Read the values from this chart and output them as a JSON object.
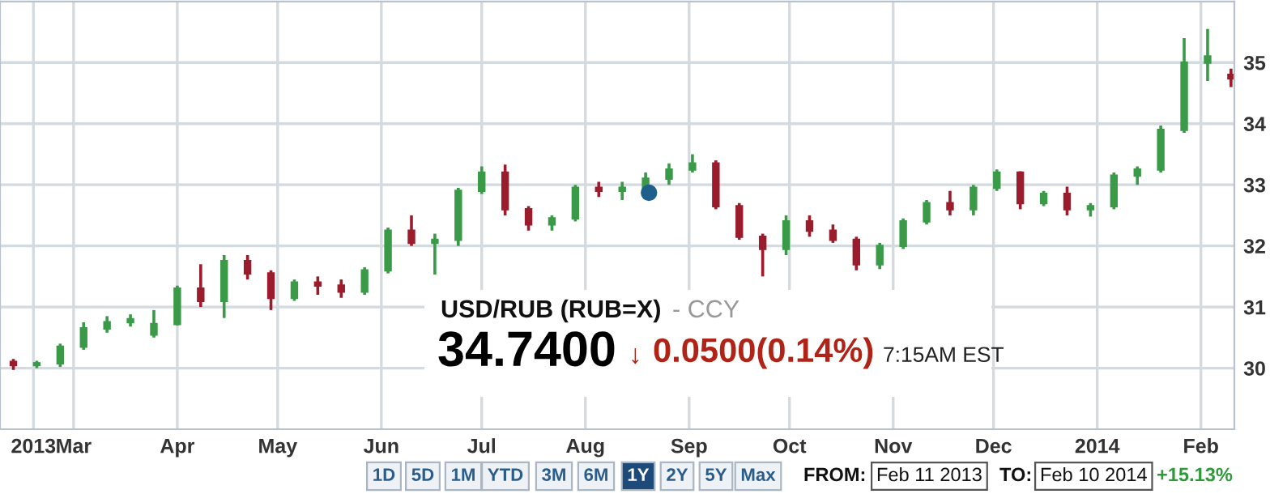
{
  "chart_data": {
    "type": "candlestick",
    "x": [
      "2013-02-11",
      "2013-02-18",
      "2013-02-25",
      "2013-03-04",
      "2013-03-11",
      "2013-03-18",
      "2013-03-25",
      "2013-04-01",
      "2013-04-08",
      "2013-04-15",
      "2013-04-22",
      "2013-04-29",
      "2013-05-06",
      "2013-05-13",
      "2013-05-20",
      "2013-05-27",
      "2013-06-03",
      "2013-06-10",
      "2013-06-17",
      "2013-06-24",
      "2013-07-01",
      "2013-07-08",
      "2013-07-15",
      "2013-07-22",
      "2013-07-29",
      "2013-08-05",
      "2013-08-12",
      "2013-08-19",
      "2013-08-26",
      "2013-09-02",
      "2013-09-09",
      "2013-09-16",
      "2013-09-23",
      "2013-09-30",
      "2013-10-07",
      "2013-10-14",
      "2013-10-21",
      "2013-10-28",
      "2013-11-04",
      "2013-11-11",
      "2013-11-18",
      "2013-11-25",
      "2013-12-02",
      "2013-12-09",
      "2013-12-16",
      "2013-12-23",
      "2013-12-30",
      "2014-01-06",
      "2014-01-13",
      "2014-01-20",
      "2014-01-27",
      "2014-02-03",
      "2014-02-10"
    ],
    "ohlc": [
      [
        30.1,
        30.15,
        29.97,
        30.05
      ],
      [
        30.05,
        30.12,
        30.0,
        30.08
      ],
      [
        30.08,
        30.4,
        30.02,
        30.35
      ],
      [
        30.35,
        30.75,
        30.3,
        30.65
      ],
      [
        30.65,
        30.85,
        30.58,
        30.75
      ],
      [
        30.75,
        30.88,
        30.68,
        30.8
      ],
      [
        30.55,
        30.95,
        30.5,
        30.72
      ],
      [
        30.72,
        31.35,
        30.7,
        31.3
      ],
      [
        31.3,
        31.7,
        31.0,
        31.1
      ],
      [
        31.1,
        31.85,
        30.82,
        31.75
      ],
      [
        31.75,
        31.85,
        31.45,
        31.55
      ],
      [
        31.55,
        31.6,
        30.95,
        31.15
      ],
      [
        31.15,
        31.45,
        31.1,
        31.4
      ],
      [
        31.4,
        31.5,
        31.2,
        31.35
      ],
      [
        31.35,
        31.45,
        31.15,
        31.25
      ],
      [
        31.25,
        31.65,
        31.2,
        31.6
      ],
      [
        31.6,
        32.3,
        31.55,
        32.25
      ],
      [
        32.25,
        32.5,
        32.0,
        32.05
      ],
      [
        32.05,
        32.2,
        31.53,
        32.1
      ],
      [
        32.1,
        32.95,
        32.0,
        32.9
      ],
      [
        32.9,
        33.3,
        32.85,
        33.2
      ],
      [
        33.2,
        33.33,
        32.5,
        32.6
      ],
      [
        32.6,
        32.65,
        32.25,
        32.35
      ],
      [
        32.35,
        32.5,
        32.25,
        32.45
      ],
      [
        32.45,
        33.0,
        32.4,
        32.95
      ],
      [
        32.95,
        33.05,
        32.8,
        32.9
      ],
      [
        32.9,
        33.05,
        32.75,
        32.95
      ],
      [
        32.95,
        33.2,
        32.9,
        33.1
      ],
      [
        33.1,
        33.35,
        33.0,
        33.25
      ],
      [
        33.25,
        33.5,
        33.2,
        33.35
      ],
      [
        33.35,
        33.4,
        32.6,
        32.65
      ],
      [
        32.65,
        32.7,
        32.1,
        32.15
      ],
      [
        32.15,
        32.2,
        31.5,
        31.95
      ],
      [
        31.95,
        32.5,
        31.85,
        32.4
      ],
      [
        32.4,
        32.5,
        32.15,
        32.25
      ],
      [
        32.25,
        32.35,
        32.05,
        32.1
      ],
      [
        32.1,
        32.15,
        31.6,
        31.7
      ],
      [
        31.7,
        32.05,
        31.62,
        32.0
      ],
      [
        32.0,
        32.45,
        31.95,
        32.4
      ],
      [
        32.4,
        32.75,
        32.35,
        32.7
      ],
      [
        32.7,
        32.9,
        32.5,
        32.6
      ],
      [
        32.6,
        33.0,
        32.5,
        32.95
      ],
      [
        32.95,
        33.25,
        32.9,
        33.2
      ],
      [
        33.2,
        33.22,
        32.6,
        32.7
      ],
      [
        32.7,
        32.9,
        32.65,
        32.85
      ],
      [
        32.85,
        32.97,
        32.5,
        32.6
      ],
      [
        32.6,
        32.7,
        32.48,
        32.65
      ],
      [
        32.65,
        33.2,
        32.6,
        33.15
      ],
      [
        33.15,
        33.3,
        33.0,
        33.25
      ],
      [
        33.25,
        33.97,
        33.2,
        33.9
      ],
      [
        33.9,
        35.4,
        33.85,
        35.0
      ],
      [
        35.0,
        35.55,
        34.7,
        35.1
      ],
      [
        34.8,
        34.9,
        34.6,
        34.74
      ]
    ],
    "colors": [
      "#9b1c2c",
      "#3a9a48",
      "#3a9a48",
      "#3a9a48",
      "#3a9a48",
      "#3a9a48",
      "#3a9a48",
      "#3a9a48",
      "#9b1c2c",
      "#3a9a48",
      "#9b1c2c",
      "#9b1c2c",
      "#3a9a48",
      "#9b1c2c",
      "#9b1c2c",
      "#3a9a48",
      "#3a9a48",
      "#9b1c2c",
      "#3a9a48",
      "#3a9a48",
      "#3a9a48",
      "#9b1c2c",
      "#9b1c2c",
      "#3a9a48",
      "#3a9a48",
      "#9b1c2c",
      "#3a9a48",
      "#3a9a48",
      "#3a9a48",
      "#3a9a48",
      "#9b1c2c",
      "#9b1c2c",
      "#9b1c2c",
      "#3a9a48",
      "#9b1c2c",
      "#9b1c2c",
      "#9b1c2c",
      "#3a9a48",
      "#3a9a48",
      "#3a9a48",
      "#9b1c2c",
      "#3a9a48",
      "#3a9a48",
      "#9b1c2c",
      "#3a9a48",
      "#9b1c2c",
      "#3a9a48",
      "#3a9a48",
      "#3a9a48",
      "#3a9a48",
      "#3a9a48",
      "#3a9a48",
      "#9b1c2c"
    ],
    "series": [
      {
        "type": "scatter",
        "x": [
          "2013-08-20"
        ],
        "values": [
          32.87
        ],
        "color": "#1f5f8b",
        "marker": "circle"
      }
    ],
    "xlim": [
      "2013-02-07",
      "2014-02-11"
    ],
    "xticks": [
      {
        "value": "2013-02-17",
        "label": "2013"
      },
      {
        "value": "2013-03-01",
        "label": "Mar"
      },
      {
        "value": "2013-04-01",
        "label": "Apr"
      },
      {
        "value": "2013-05-01",
        "label": "May"
      },
      {
        "value": "2013-06-01",
        "label": "Jun"
      },
      {
        "value": "2013-07-01",
        "label": "Jul"
      },
      {
        "value": "2013-08-01",
        "label": "Aug"
      },
      {
        "value": "2013-09-01",
        "label": "Sep"
      },
      {
        "value": "2013-10-01",
        "label": "Oct"
      },
      {
        "value": "2013-11-01",
        "label": "Nov"
      },
      {
        "value": "2013-12-01",
        "label": "Dec"
      },
      {
        "value": "2014-01-01",
        "label": "2014"
      },
      {
        "value": "2014-02-01",
        "label": "Feb"
      }
    ],
    "ylim": [
      29.0,
      36.0
    ],
    "yticks": [
      30,
      31,
      32,
      33,
      34,
      35
    ],
    "grid": true,
    "annotations": [
      "USD/RUB (RUB=X)",
      "- CCY",
      "34.7400",
      "↓",
      "0.0500(0.14%)",
      "7:15AM EST",
      "1D",
      "5D",
      "1M",
      "YTD",
      "3M",
      "6M",
      "1Y",
      "2Y",
      "5Y",
      "Max",
      "FROM:",
      "Feb 11 2013",
      "TO:",
      "Feb 10 2014",
      "+15.13%"
    ]
  }
}
